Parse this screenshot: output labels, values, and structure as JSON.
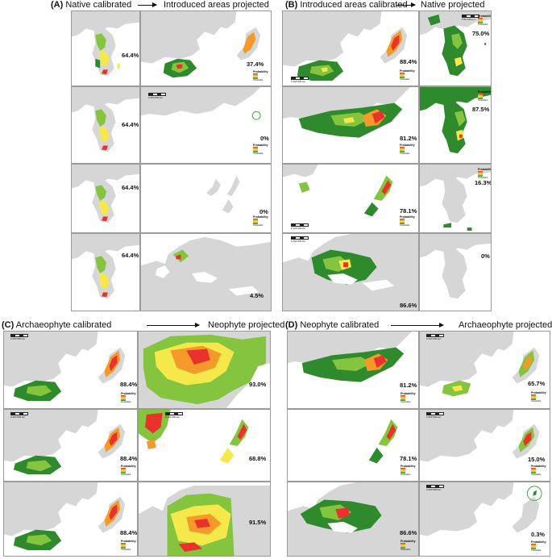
{
  "panels": {
    "A": {
      "letter": "(A)",
      "left": "Native calibrated",
      "right": "Introduced areas projected"
    },
    "B": {
      "letter": "(B)",
      "left": "Introduced areas calibrated",
      "right": "Native projected"
    },
    "C": {
      "letter": "(C)",
      "left": "Archaeophyte calibrated",
      "right": "Neophyte projected"
    },
    "D": {
      "letter": "(D)",
      "left": "Neophyte calibrated",
      "right": "Archaeophyte projected"
    }
  },
  "percentages": {
    "A_left": [
      "64.4%",
      "64.4%",
      "64.4%",
      "64.4%"
    ],
    "A_right": [
      "37.4%",
      "0%",
      "0%",
      "4.5%"
    ],
    "B_left": [
      "88.4%",
      "81.2%",
      "78.1%",
      "86.6%"
    ],
    "B_right": [
      "75.0%",
      "87.5%",
      "16.3%",
      "0%"
    ],
    "C_left": [
      "88.4%",
      "88.4%",
      "88.4%"
    ],
    "C_right": [
      "93.0%",
      "68.8%",
      "91.5%"
    ],
    "D_left": [
      "81.2%",
      "78.1%",
      "86.6%"
    ],
    "D_right": [
      "65.7%",
      "15.0%",
      "0.3%"
    ]
  },
  "legend": {
    "title": "Probability",
    "low": "Unsuitable"
  },
  "scales": {
    "native": "0  50  100 km",
    "east_asia": "0  250  500 km",
    "north_america": "0  250  500 km",
    "new_zealand": "0  100  200 km",
    "europe": "0  250  500 km"
  },
  "colors": {
    "land": "#d6d6d6",
    "border": "#9a9a9a",
    "high": "#e8322b",
    "mid_high": "#f39a2a",
    "mid": "#f5e84a",
    "low": "#84c43f",
    "very_low": "#2f8a2e"
  }
}
